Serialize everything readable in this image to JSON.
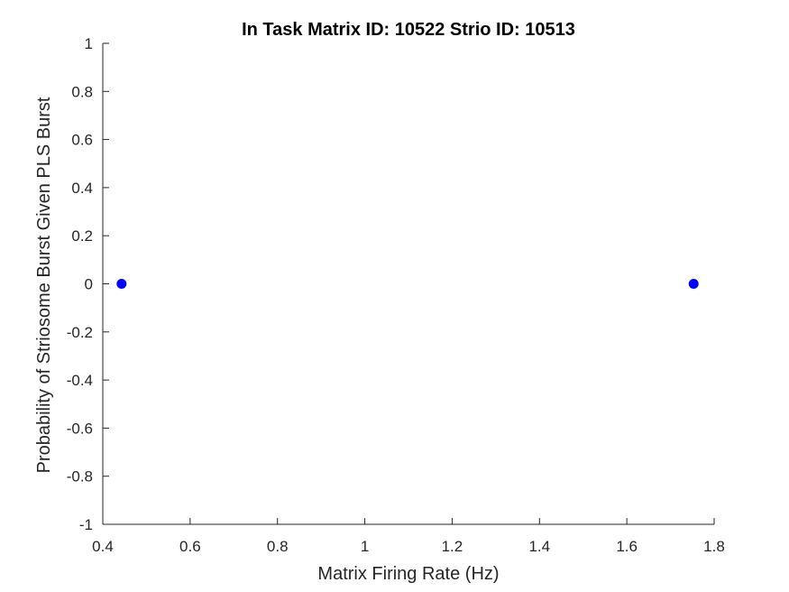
{
  "chart_data": {
    "type": "scatter",
    "title": "In Task Matrix ID: 10522 Strio ID: 10513",
    "xlabel": "Matrix Firing Rate (Hz)",
    "ylabel": "Probability of Striosome Burst Given PLS Burst",
    "xlim": [
      0.4,
      1.8
    ],
    "ylim": [
      -1,
      1
    ],
    "xticks": [
      0.4,
      0.6,
      0.8,
      1,
      1.2,
      1.4,
      1.6,
      1.8
    ],
    "yticks": [
      -1,
      -0.8,
      -0.6,
      -0.4,
      -0.2,
      0,
      0.2,
      0.4,
      0.6,
      0.8,
      1
    ],
    "xtick_labels": [
      "0.4",
      "0.6",
      "0.8",
      "1",
      "1.2",
      "1.4",
      "1.6",
      "1.8"
    ],
    "ytick_labels": [
      "-1",
      "-0.8",
      "-0.6",
      "-0.4",
      "-0.2",
      "0",
      "0.2",
      "0.4",
      "0.6",
      "0.8",
      "1"
    ],
    "grid": false,
    "series": [
      {
        "color": "#0000ff",
        "points": [
          {
            "x": 0.443,
            "y": 0
          },
          {
            "x": 1.753,
            "y": 0
          }
        ]
      }
    ]
  }
}
